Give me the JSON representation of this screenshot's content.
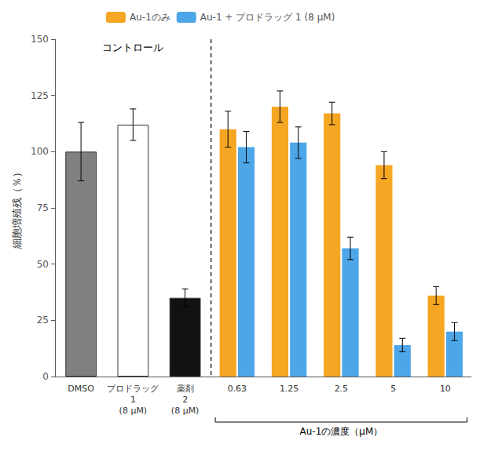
{
  "chart_data": {
    "type": "bar",
    "categories": [
      "DMSO",
      "ブロドラッグ\n1\n(8 μM)",
      "薬剤\n2\n(8 μM)",
      "0.63",
      "1.25",
      "2.5",
      "5",
      "10"
    ],
    "ylabel": "細胞増殖残（％）",
    "ylim": [
      0,
      150
    ],
    "yticks": [
      0,
      25,
      50,
      75,
      100,
      125,
      150
    ],
    "annotations": [
      "コントロール",
      "Au-1の濃度（μM）"
    ],
    "legend": "upper left",
    "grid": false,
    "series": [
      {
        "values": [
          100,
          112,
          35,
          null,
          null,
          null,
          null,
          null
        ],
        "errors": [
          13,
          7,
          4,
          null,
          null,
          null,
          null,
          null
        ],
        "colors": [
          "#808080",
          "#ffffff",
          "#111111",
          null,
          null,
          null,
          null,
          null
        ]
      },
      {
        "name": "Au-1のみ",
        "color": "#F5A623",
        "values": [
          null,
          null,
          null,
          110,
          120,
          117,
          94,
          36
        ],
        "errors": [
          null,
          null,
          null,
          8,
          7,
          5,
          6,
          4
        ]
      },
      {
        "name": "Au-1 + プロドラッグ 1 (8 μM)",
        "color": "#4DA6E8",
        "values": [
          null,
          null,
          null,
          102,
          104,
          57,
          14,
          20
        ],
        "errors": [
          null,
          null,
          null,
          7,
          7,
          5,
          3,
          4
        ]
      }
    ]
  }
}
